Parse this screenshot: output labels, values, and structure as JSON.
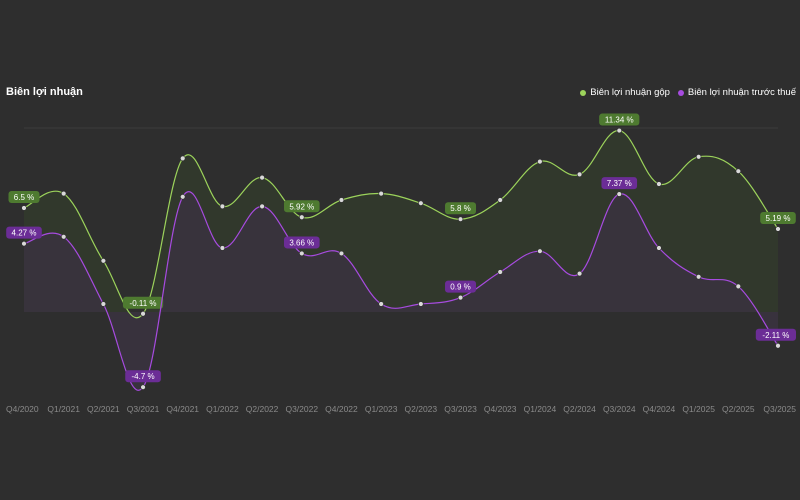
{
  "title": "Biên lợi nhuận",
  "legend": [
    {
      "label": "Biên lợi nhuận gộp",
      "color": "#9cd35b"
    },
    {
      "label": "Biên lợi nhuận trước thuế",
      "color": "#a74be0"
    }
  ],
  "colors": {
    "background": "#2e2e2e",
    "gross_line": "#9cd35b",
    "gross_fill": "#313a2c",
    "gross_label_bg": "#4e7a30",
    "pretax_line": "#a74be0",
    "pretax_fill": "#3a3340",
    "pretax_label_bg": "#6b2d96",
    "point": "#d9d9d9"
  },
  "chart_data": {
    "type": "area",
    "categories": [
      "Q4/2020",
      "Q1/2021",
      "Q2/2021",
      "Q3/2021",
      "Q4/2021",
      "Q1/2022",
      "Q2/2022",
      "Q3/2022",
      "Q4/2022",
      "Q1/2023",
      "Q2/2023",
      "Q3/2023",
      "Q4/2023",
      "Q1/2024",
      "Q2/2024",
      "Q3/2024",
      "Q4/2024",
      "Q1/2025",
      "Q2/2025",
      "Q3/2025"
    ],
    "series": [
      {
        "name": "Biên lợi nhuận gộp",
        "values": [
          6.5,
          7.4,
          3.2,
          -0.11,
          9.6,
          6.6,
          8.4,
          5.92,
          7.0,
          7.4,
          6.8,
          5.8,
          7.0,
          9.4,
          8.6,
          11.34,
          8.0,
          9.7,
          8.8,
          5.19
        ],
        "labels": {
          "0": "6.5 %",
          "7": "5.92 %",
          "11": "5.8 %",
          "15": "11.34 %",
          "19": "5.19 %",
          "3": "-0.11 %"
        }
      },
      {
        "name": "Biên lợi nhuận trước thuế",
        "values": [
          4.27,
          4.7,
          0.5,
          -4.7,
          7.2,
          4.0,
          6.6,
          3.66,
          3.66,
          0.5,
          0.5,
          0.9,
          2.5,
          3.8,
          2.4,
          7.37,
          4.0,
          2.2,
          1.6,
          -2.11
        ],
        "labels": {
          "0": "4.27 %",
          "3": "-4.7 %",
          "7": "3.66 %",
          "11": "0.9 %",
          "15": "7.37 %",
          "19": "-2.11 %"
        }
      }
    ],
    "ylim": [
      -5.5,
      11.5
    ]
  }
}
